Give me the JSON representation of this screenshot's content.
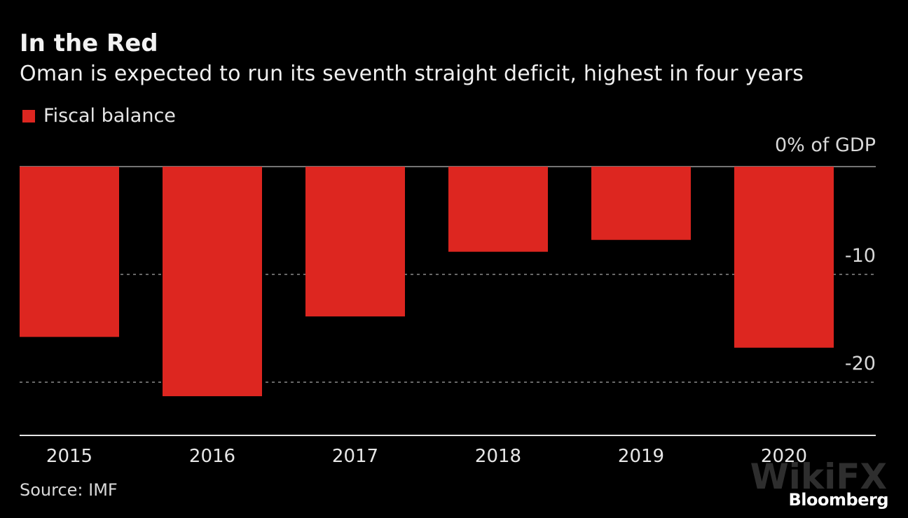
{
  "header": {
    "title": "In the Red",
    "subtitle": "Oman is expected to run its seventh straight deficit, highest in four years"
  },
  "footer": {
    "source": "Source: IMF",
    "brand": "Bloomberg",
    "watermark": "WikiFX"
  },
  "chart_data": {
    "type": "bar",
    "title": "In the Red",
    "subtitle": "Oman is expected to run its seventh straight deficit, highest in four years",
    "categories": [
      "2015",
      "2016",
      "2017",
      "2018",
      "2019",
      "2020"
    ],
    "series": [
      {
        "name": "Fiscal balance",
        "color": "#dd2620",
        "values": [
          -15.8,
          -21.3,
          -13.9,
          -7.9,
          -6.8,
          -16.8
        ]
      }
    ],
    "unit_label": "0% of GDP",
    "yticks": [
      0,
      -10,
      -20
    ],
    "ytick_labels": [
      "0% of GDP",
      "-10",
      "-20"
    ],
    "ylim": [
      -25,
      0
    ],
    "xlabel": "",
    "ylabel": "% of GDP",
    "grid": true,
    "legend": "top-left",
    "axis_position": "right"
  }
}
